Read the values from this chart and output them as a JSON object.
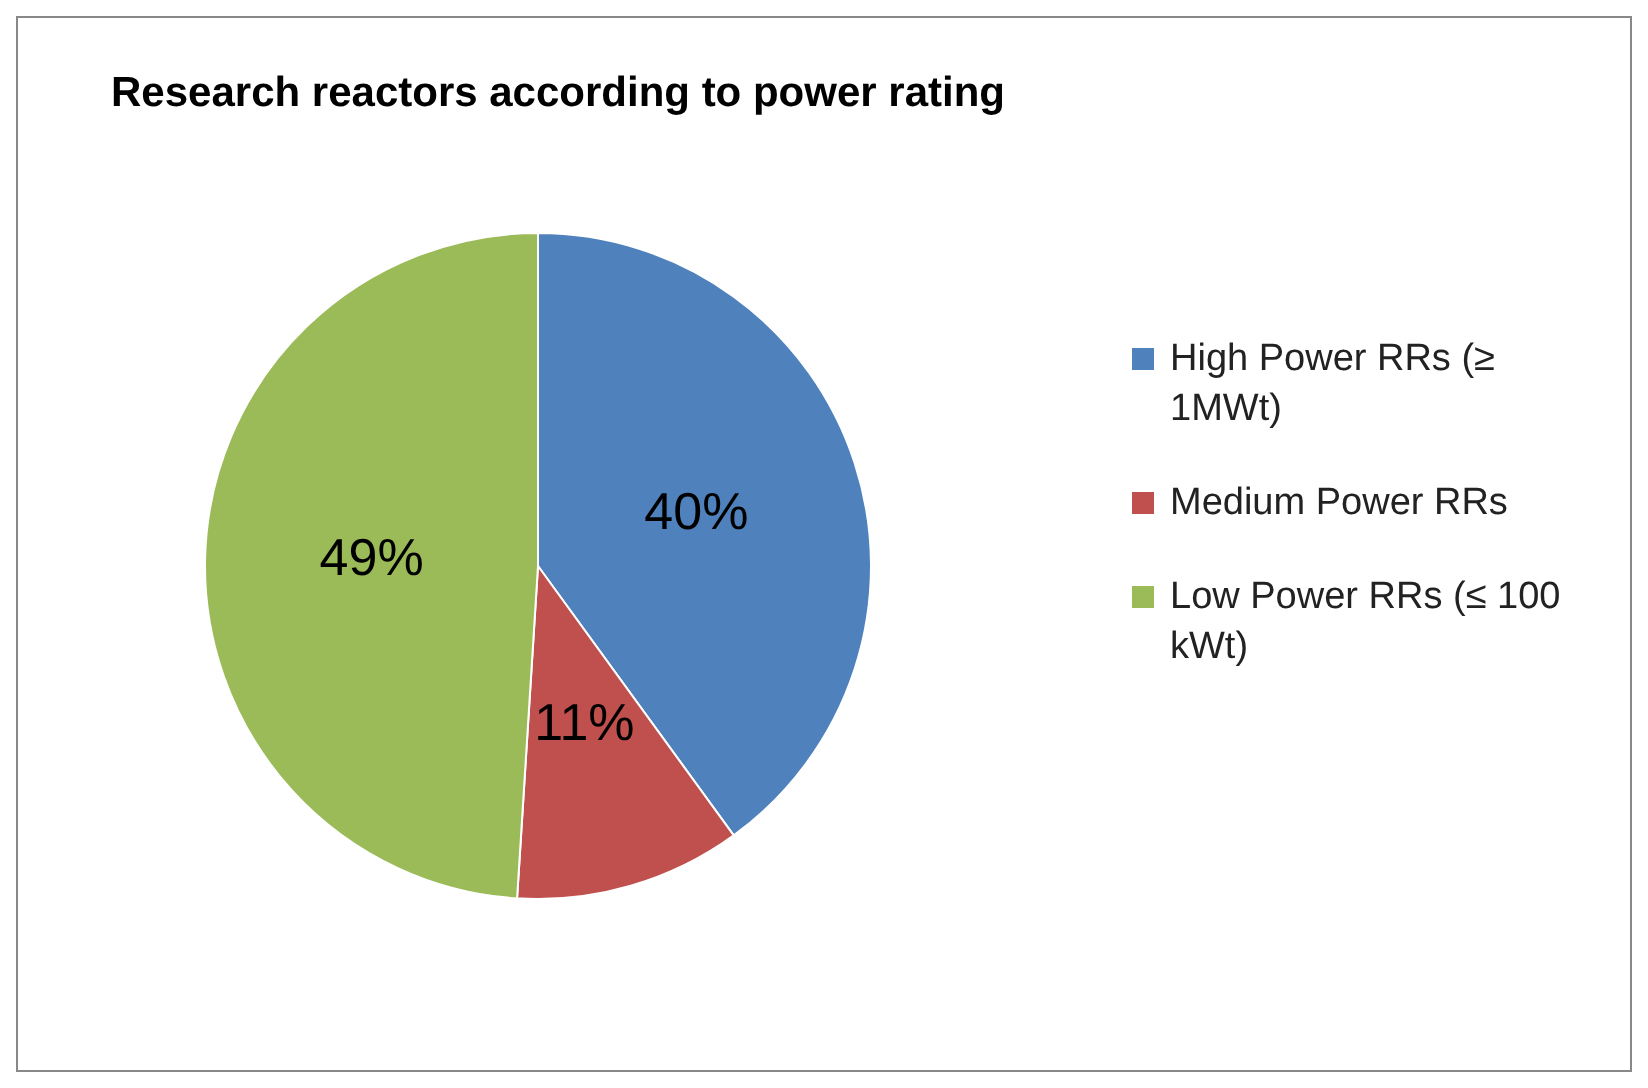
{
  "chart_data": {
    "type": "pie",
    "title": "Research reactors according to power rating",
    "categories": [
      "High Power RRs (≥ 1MWt)",
      "Medium Power RRs",
      "Low Power RRs (≤ 100 kWt)"
    ],
    "values": [
      40,
      11,
      49
    ],
    "colors": [
      "#4f81bd",
      "#c0504d",
      "#9bbb59"
    ],
    "value_labels": [
      "40%",
      "11%",
      "49%"
    ],
    "legend": "right"
  }
}
